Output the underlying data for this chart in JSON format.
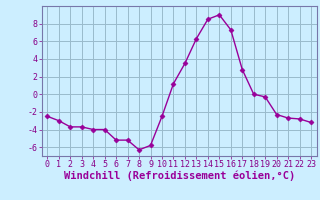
{
  "x": [
    0,
    1,
    2,
    3,
    4,
    5,
    6,
    7,
    8,
    9,
    10,
    11,
    12,
    13,
    14,
    15,
    16,
    17,
    18,
    19,
    20,
    21,
    22,
    23
  ],
  "y": [
    -2.5,
    -3.0,
    -3.7,
    -3.7,
    -4.0,
    -4.0,
    -5.2,
    -5.2,
    -6.3,
    -5.8,
    -2.5,
    1.2,
    3.5,
    6.3,
    8.5,
    9.0,
    7.3,
    2.8,
    0.0,
    -0.3,
    -2.3,
    -2.7,
    -2.8,
    -3.2
  ],
  "line_color": "#990099",
  "marker": "D",
  "marker_size": 2.5,
  "bg_color": "#cceeff",
  "grid_color": "#99bbcc",
  "xlabel": "Windchill (Refroidissement éolien,°C)",
  "xlabel_color": "#990099",
  "ylim": [
    -7,
    10
  ],
  "xlim": [
    -0.5,
    23.5
  ],
  "yticks": [
    -6,
    -4,
    -2,
    0,
    2,
    4,
    6,
    8
  ],
  "xticks": [
    0,
    1,
    2,
    3,
    4,
    5,
    6,
    7,
    8,
    9,
    10,
    11,
    12,
    13,
    14,
    15,
    16,
    17,
    18,
    19,
    20,
    21,
    22,
    23
  ],
  "tick_color": "#880088",
  "tick_labelsize": 6,
  "xlabel_fontsize": 7.5,
  "line_width": 1.0,
  "spine_color": "#7777aa"
}
